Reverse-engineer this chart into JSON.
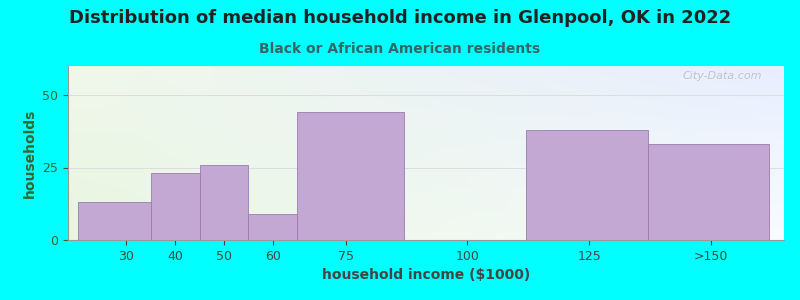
{
  "title": "Distribution of median household income in Glenpool, OK in 2022",
  "subtitle": "Black or African American residents",
  "xlabel": "household income ($1000)",
  "ylabel": "households",
  "background_outer": "#00FFFF",
  "bar_color": "#C4A8D4",
  "bar_edgecolor": "#9B7BAE",
  "categories": [
    "30",
    "40",
    "50",
    "60",
    "75",
    "100",
    "125",
    ">150"
  ],
  "values": [
    13,
    23,
    26,
    9,
    44,
    0,
    38,
    33
  ],
  "bar_left_edges": [
    20,
    35,
    45,
    55,
    65,
    87,
    112,
    137
  ],
  "bar_right_edges": [
    35,
    45,
    55,
    65,
    87,
    112,
    137,
    162
  ],
  "xtick_positions": [
    30,
    40,
    50,
    60,
    75,
    100,
    125,
    150
  ],
  "ylim": [
    0,
    60
  ],
  "xlim": [
    18,
    165
  ],
  "yticks": [
    0,
    25,
    50
  ],
  "title_fontsize": 13,
  "subtitle_fontsize": 10,
  "axis_label_fontsize": 10,
  "tick_fontsize": 9,
  "plot_bg_topleft_color": "#E8F5E0",
  "plot_bg_bottomright_color": "#E8EEFF",
  "watermark_text": "City-Data.com",
  "watermark_color": "#BBBBBB",
  "title_color": "#222222",
  "subtitle_color": "#336666",
  "ylabel_color": "#336633",
  "xlabel_color": "#444444",
  "ytick_color": "#336633",
  "xtick_color": "#444444"
}
